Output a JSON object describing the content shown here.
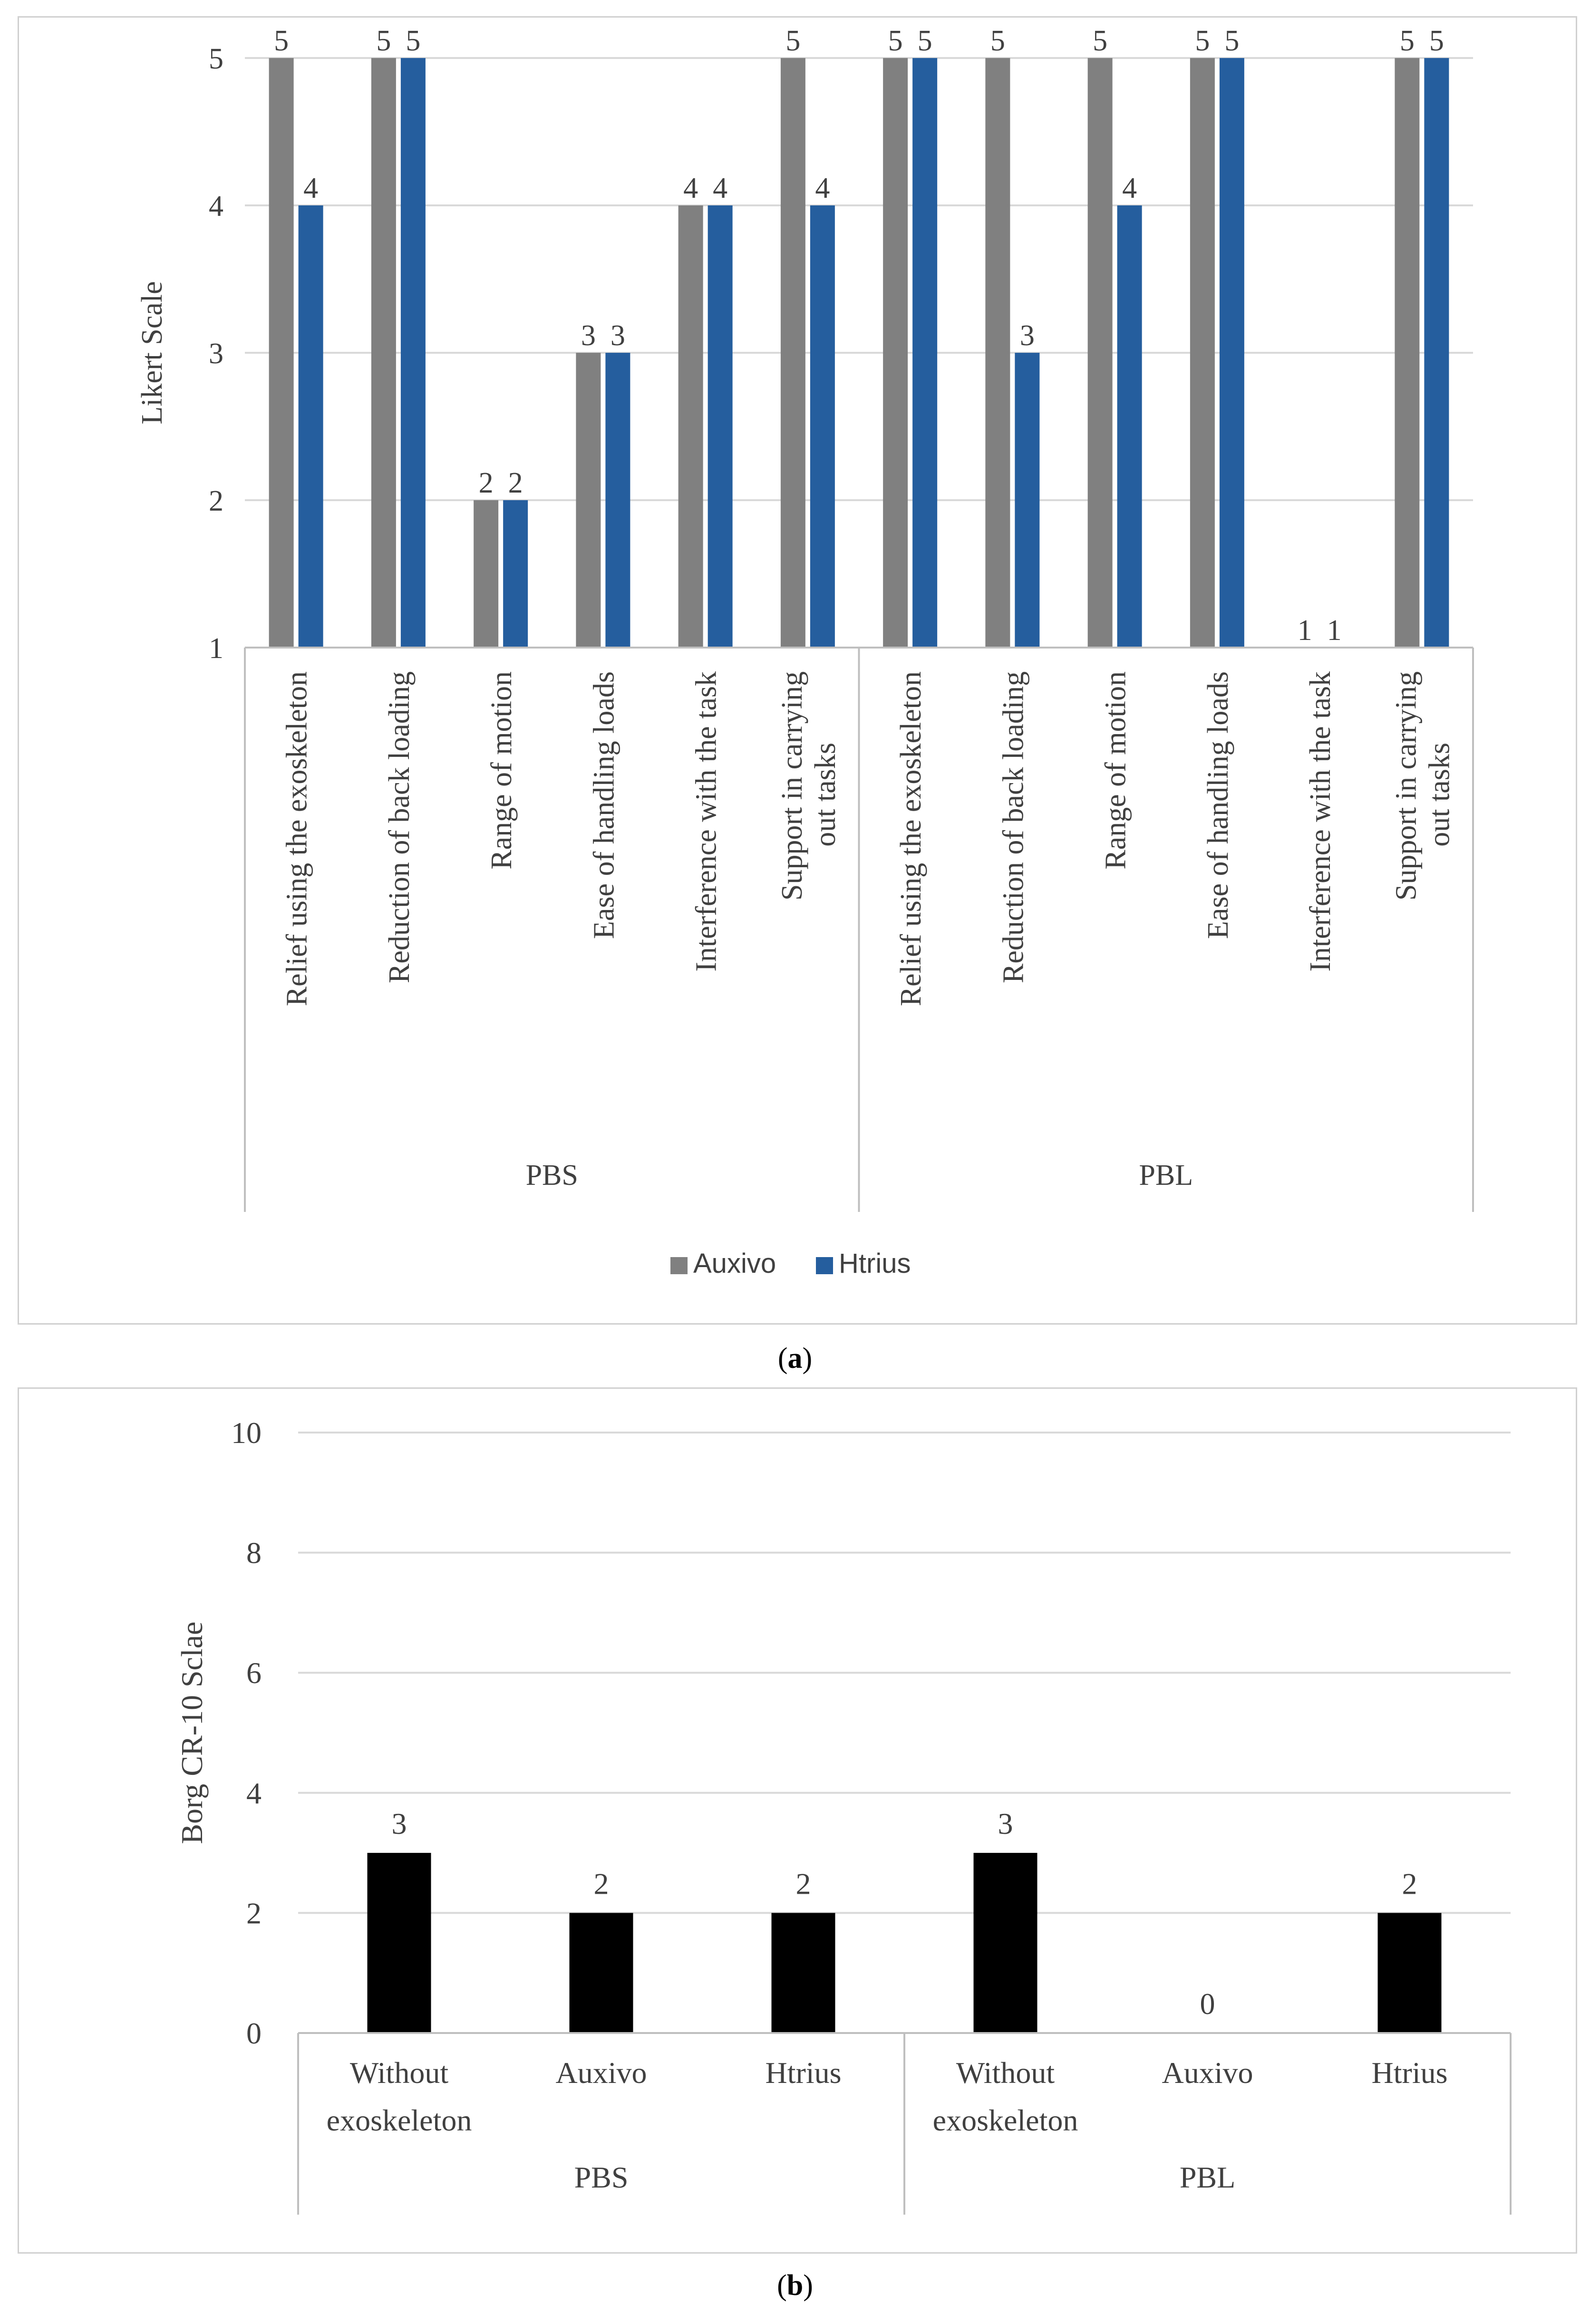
{
  "figure_a": {
    "caption_letter": "a",
    "chart_data": {
      "type": "bar",
      "ylabel": "Likert Scale",
      "ylim": [
        1,
        5
      ],
      "yticks": [
        1,
        2,
        3,
        4,
        5
      ],
      "grid": true,
      "groups": [
        {
          "name": "PBS",
          "categories": [
            "Relief using the exoskeleton",
            "Reduction of back loading",
            "Range of motion",
            "Ease of handling loads",
            "Interference with the task",
            "Support in carrying out tasks"
          ]
        },
        {
          "name": "PBL",
          "categories": [
            "Relief using the exoskeleton",
            "Reduction of back loading",
            "Range of motion",
            "Ease of handling loads",
            "Interference with the task",
            "Support in carrying out tasks"
          ]
        }
      ],
      "series": [
        {
          "name": "Auxivo",
          "color": "#808080",
          "values": [
            5,
            5,
            2,
            3,
            4,
            5,
            5,
            5,
            5,
            5,
            1,
            5
          ]
        },
        {
          "name": "Htrius",
          "color": "#255e9e",
          "values": [
            4,
            5,
            2,
            3,
            4,
            4,
            5,
            3,
            4,
            5,
            1,
            5
          ]
        }
      ],
      "legend": "bottom"
    }
  },
  "figure_b": {
    "caption_letter": "b",
    "chart_data": {
      "type": "bar",
      "ylabel": "Borg CR-10 Sclae",
      "ylim": [
        0,
        10
      ],
      "yticks": [
        0,
        2,
        4,
        6,
        8,
        10
      ],
      "grid": true,
      "groups": [
        {
          "name": "PBS",
          "categories": [
            "Without exoskeleton",
            "Auxivo",
            "Htrius"
          ]
        },
        {
          "name": "PBL",
          "categories": [
            "Without exoskeleton",
            "Auxivo",
            "Htrius"
          ]
        }
      ],
      "series": [
        {
          "name": "Borg CR-10",
          "color": "#000000",
          "values": [
            3,
            2,
            2,
            3,
            0,
            2
          ]
        }
      ]
    }
  }
}
